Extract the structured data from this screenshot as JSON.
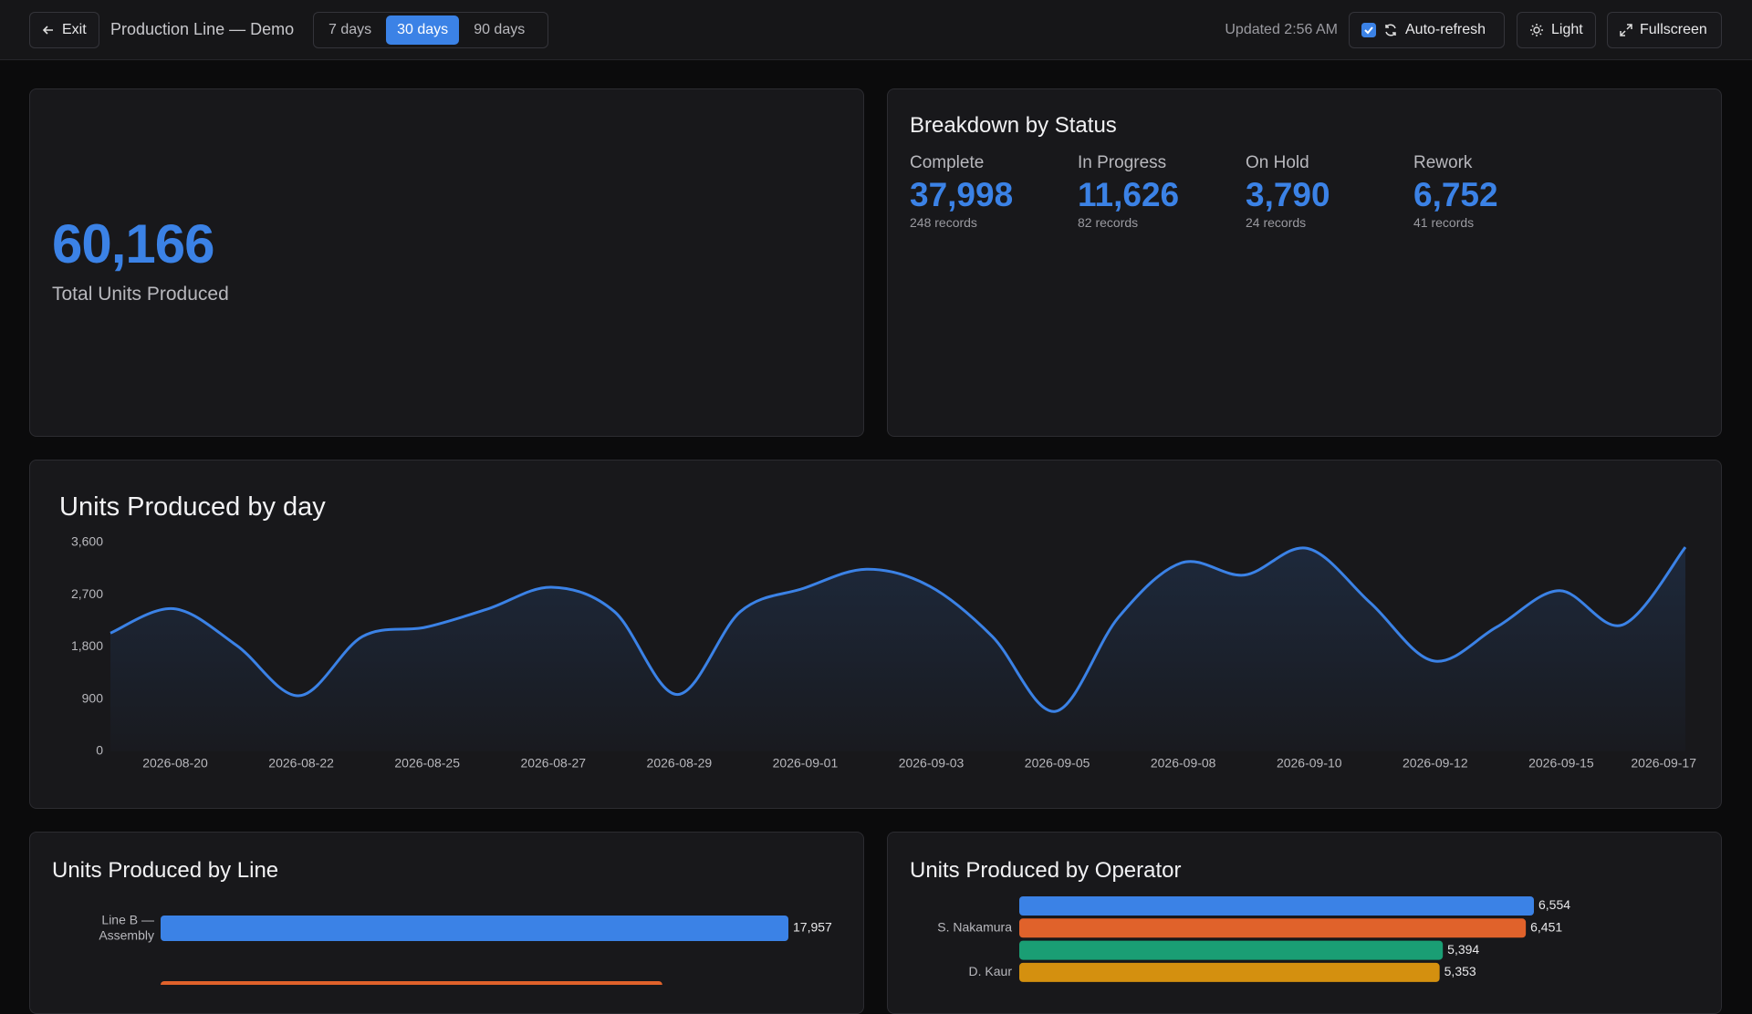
{
  "header": {
    "exit": "Exit",
    "title": "Production Line — Demo",
    "ranges": [
      "7 days",
      "30 days",
      "90 days"
    ],
    "active_range": 1,
    "updated": "Updated 2:56 AM",
    "auto_refresh": "Auto-refresh",
    "auto_refresh_checked": true,
    "theme": "Light",
    "fullscreen": "Fullscreen"
  },
  "kpi": {
    "value": "60,166",
    "label": "Total Units Produced"
  },
  "breakdown": {
    "title": "Breakdown by Status",
    "items": [
      {
        "label": "Complete",
        "value": "37,998",
        "records": "248 records"
      },
      {
        "label": "In Progress",
        "value": "11,626",
        "records": "82 records"
      },
      {
        "label": "On Hold",
        "value": "3,790",
        "records": "24 records"
      },
      {
        "label": "Rework",
        "value": "6,752",
        "records": "41 records"
      }
    ]
  },
  "chart_data": [
    {
      "type": "line",
      "title": "Units Produced by day",
      "color": "#3b82e6",
      "categories": [
        null,
        "2026-08-20",
        null,
        "2026-08-22",
        null,
        "2026-08-25",
        null,
        "2026-08-27",
        null,
        "2026-08-29",
        null,
        "2026-09-01",
        null,
        "2026-09-03",
        null,
        "2026-09-05",
        null,
        "2026-09-08",
        null,
        "2026-09-10",
        null,
        "2026-09-12",
        null,
        "2026-09-15",
        null,
        "2026-09-17"
      ],
      "values": [
        2040,
        2460,
        1830,
        960,
        1980,
        2140,
        2460,
        2830,
        2410,
        980,
        2410,
        2810,
        3140,
        2850,
        1980,
        690,
        2310,
        3250,
        3040,
        3500,
        2560,
        1560,
        2140,
        2770,
        2180,
        3520
      ],
      "ylim": [
        0,
        3600
      ],
      "yticks": [
        0,
        900,
        {
          "value": 1800,
          "label": "1,800"
        },
        {
          "value": 2700,
          "label": "2,700"
        },
        {
          "value": 3600,
          "label": "3,600"
        }
      ],
      "grid": false
    },
    {
      "type": "hbar",
      "title": "Units Produced by Line",
      "categories": [
        "Line B — Assembly",
        null
      ],
      "values": [
        17957,
        14350
      ],
      "value_labels": [
        "17,957",
        null
      ],
      "colors": [
        "#3b82e6",
        "#e0622b"
      ]
    },
    {
      "type": "hbar",
      "title": "Units Produced by Operator",
      "categories": [
        null,
        "S. Nakamura",
        null,
        "D. Kaur"
      ],
      "values": [
        6554,
        6451,
        5394,
        5353
      ],
      "value_labels": [
        "6,554",
        "6,451",
        "5,394",
        "5,353"
      ],
      "colors": [
        "#3b82e6",
        "#e0622b",
        "#1a9e74",
        "#d4900f"
      ]
    }
  ]
}
